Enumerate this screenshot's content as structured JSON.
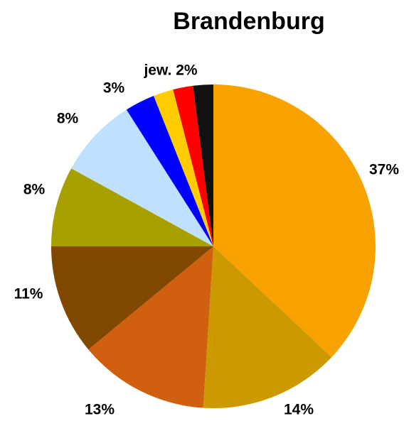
{
  "chart_data": {
    "type": "pie",
    "title": "Brandenburg",
    "values": [
      37,
      14,
      13,
      11,
      8,
      8,
      3,
      2,
      2,
      2
    ],
    "value_labels": [
      "37%",
      "14%",
      "13%",
      "11%",
      "8%",
      "8%",
      "3%",
      null,
      null,
      null
    ],
    "colors": [
      "#f8a200",
      "#cc9900",
      "#d06010",
      "#804800",
      "#a8a000",
      "#bfe0ff",
      "#0000ff",
      "#ffcc00",
      "#ff0000",
      "#111111"
    ],
    "annotation": "jew. 2%"
  }
}
